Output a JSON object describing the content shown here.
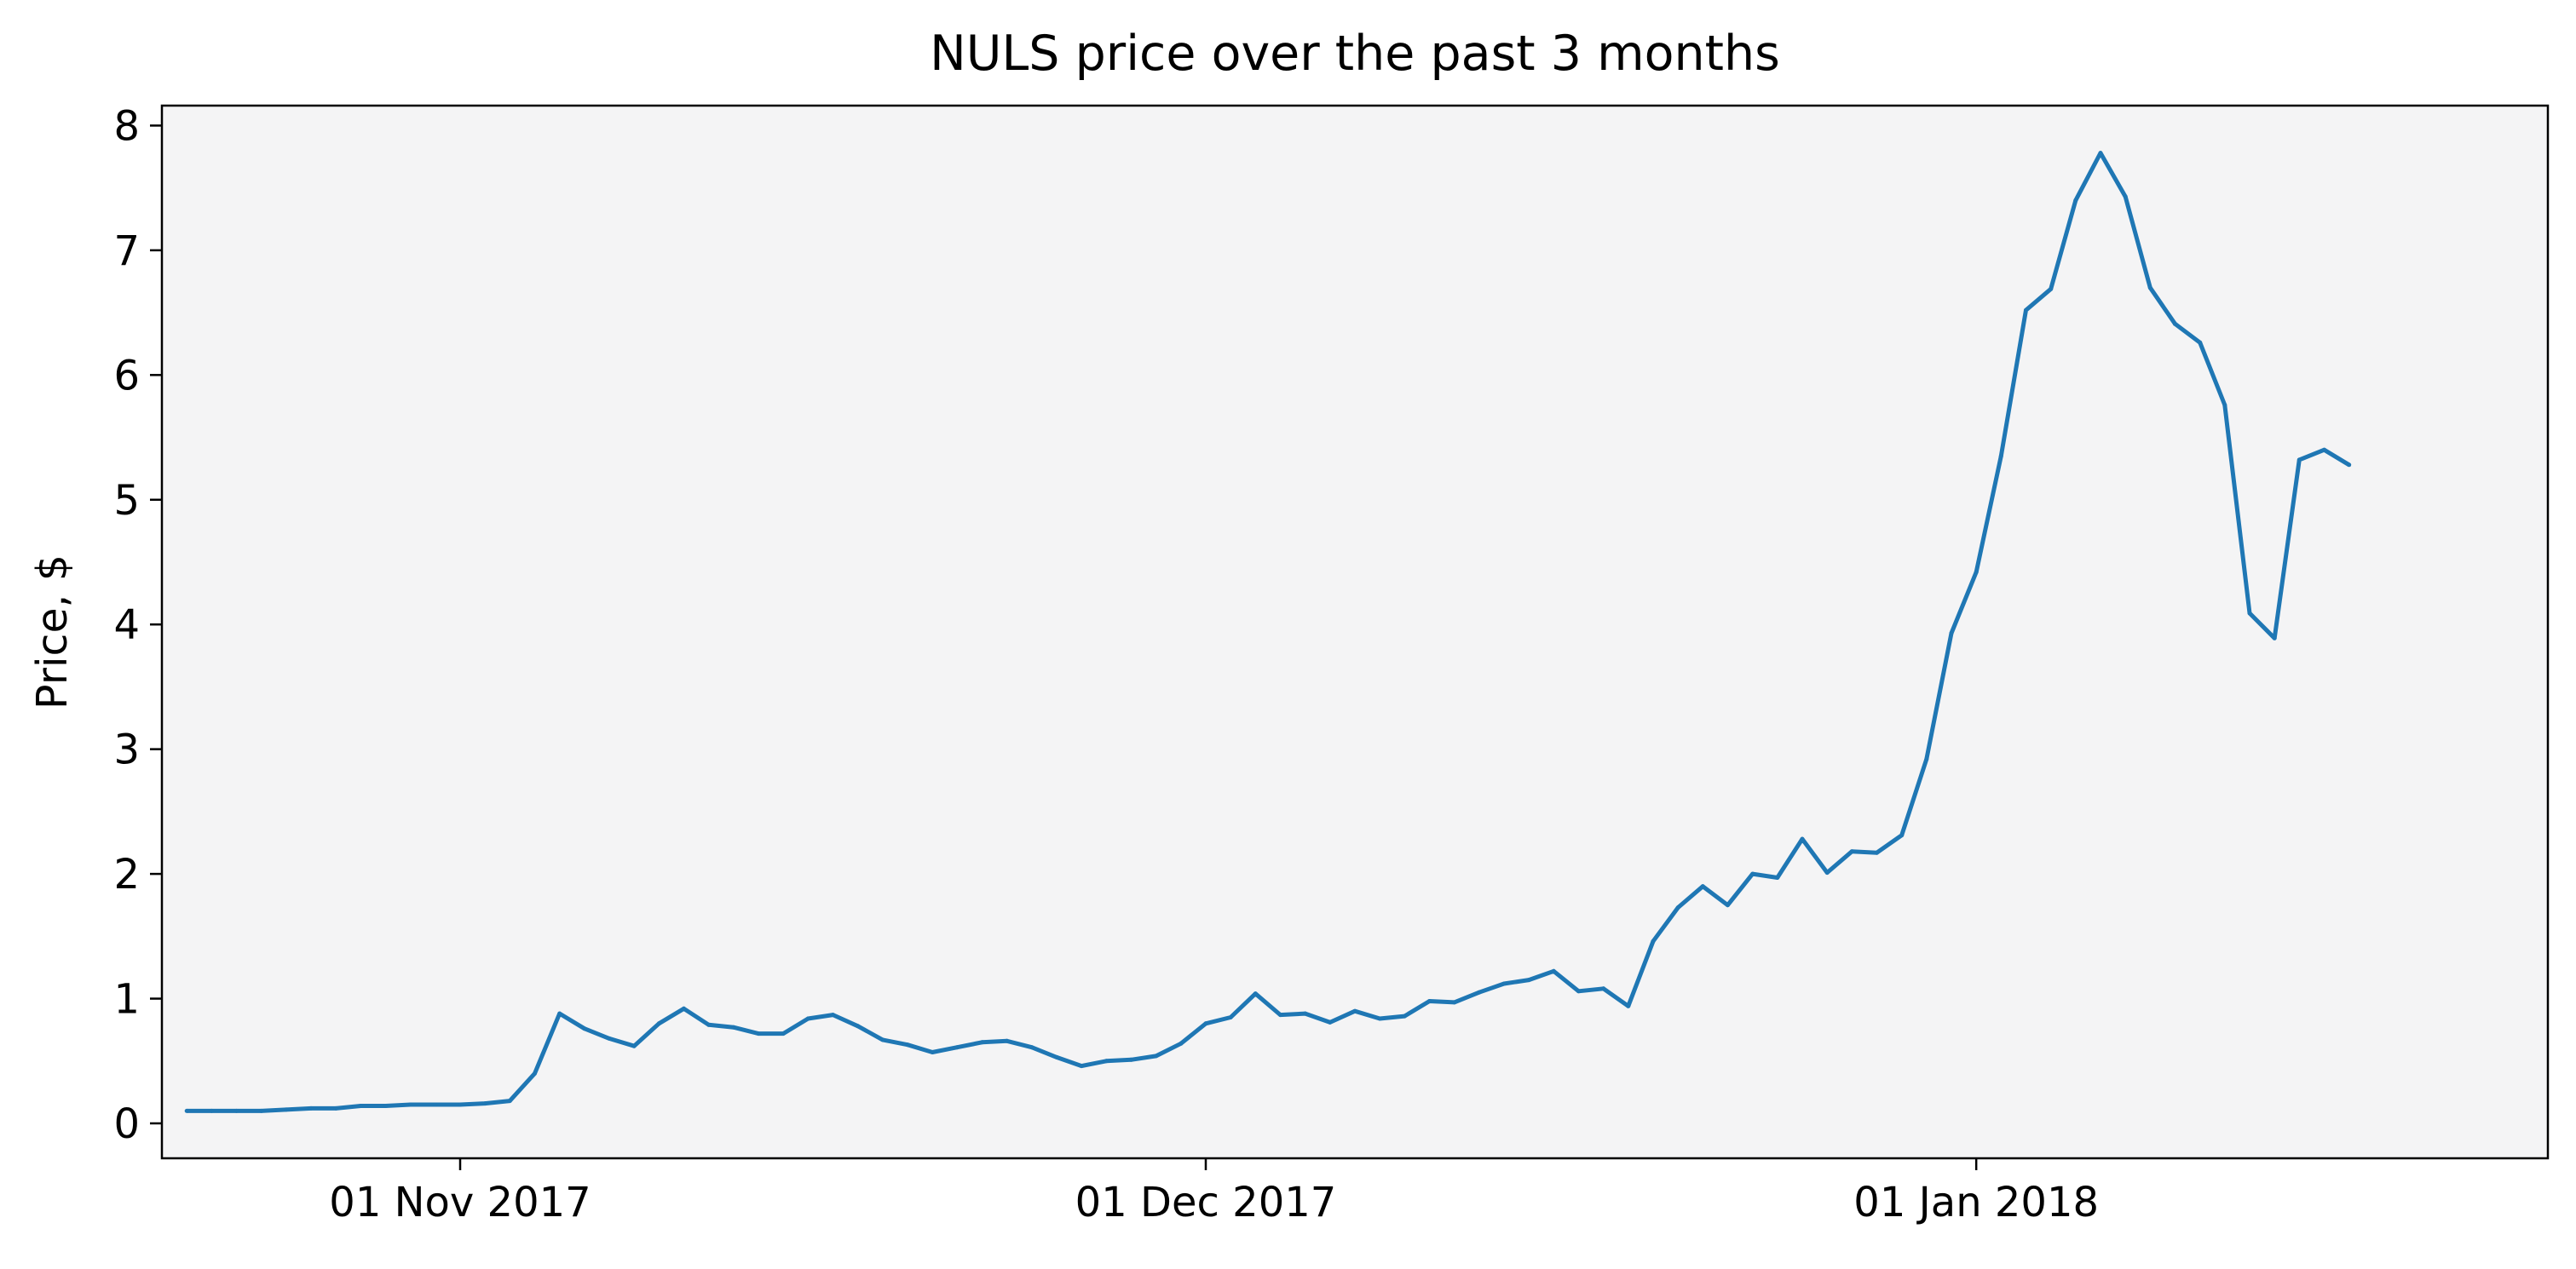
{
  "chart_data": {
    "type": "line",
    "title": "NULS price over the past 3 months",
    "xlabel": "",
    "ylabel": "Price, $",
    "xlim": [
      "2017-10-20",
      "2018-01-24"
    ],
    "ylim": [
      -0.28,
      8.16
    ],
    "grid": false,
    "legend": "none",
    "x_ticks": [
      {
        "value": "2017-11-01",
        "label": "01 Nov 2017"
      },
      {
        "value": "2017-12-01",
        "label": "01 Dec 2017"
      },
      {
        "value": "2018-01-01",
        "label": "01 Jan 2018"
      }
    ],
    "y_ticks": [
      0,
      1,
      2,
      3,
      4,
      5,
      6,
      7,
      8
    ],
    "start_date": "2017-10-21",
    "step_days": 1,
    "series": [
      {
        "name": "NULS price",
        "color": "#1f77b4",
        "values": [
          0.1,
          0.1,
          0.1,
          0.1,
          0.11,
          0.12,
          0.12,
          0.14,
          0.14,
          0.15,
          0.15,
          0.15,
          0.16,
          0.18,
          0.4,
          0.88,
          0.76,
          0.68,
          0.62,
          0.8,
          0.92,
          0.79,
          0.77,
          0.72,
          0.72,
          0.84,
          0.87,
          0.78,
          0.67,
          0.63,
          0.57,
          0.61,
          0.65,
          0.66,
          0.61,
          0.53,
          0.46,
          0.5,
          0.51,
          0.54,
          0.64,
          0.8,
          0.85,
          1.04,
          0.87,
          0.88,
          0.81,
          0.9,
          0.84,
          0.86,
          0.98,
          0.97,
          1.05,
          1.12,
          1.15,
          1.22,
          1.06,
          1.08,
          0.94,
          1.46,
          1.73,
          1.9,
          1.75,
          2.0,
          1.97,
          2.28,
          2.01,
          2.18,
          2.17,
          2.31,
          2.92,
          3.93,
          4.42,
          5.35,
          6.52,
          6.69,
          7.4,
          7.78,
          7.43,
          6.7,
          6.41,
          6.26,
          5.76,
          4.09,
          3.89,
          5.32,
          5.4,
          5.28
        ]
      }
    ]
  }
}
